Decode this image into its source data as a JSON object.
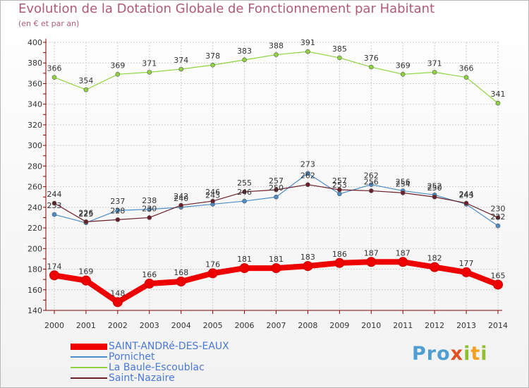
{
  "header": {
    "title": "Evolution de la Dotation Globale de Fonctionnement par Habitant",
    "subtitle": "(en € et par an)"
  },
  "brand": {
    "part1": "Pro",
    "part2": "x",
    "part3": "i",
    "part4": "t",
    "part5": "i"
  },
  "colors": {
    "saint_andre": "#ee0000",
    "pornichet": "#4d8dc6",
    "la_baule": "#8fd43f",
    "saint_nazaire": "#6b1f2a",
    "axis": "#8a0000",
    "grid": "#cccccc",
    "label": "#333333"
  },
  "chart_data": {
    "type": "line",
    "title": "Evolution de la Dotation Globale de Fonctionnement par Habitant",
    "subtitle": "(en € et par an)",
    "xlabel": "",
    "ylabel": "",
    "ylim": [
      140,
      400
    ],
    "yticks": [
      140,
      160,
      180,
      200,
      220,
      240,
      260,
      280,
      300,
      320,
      340,
      360,
      380,
      400
    ],
    "grid": true,
    "legend_position": "bottom-left",
    "x": [
      2000,
      2001,
      2002,
      2003,
      2004,
      2005,
      2006,
      2007,
      2008,
      2009,
      2010,
      2011,
      2012,
      2013,
      2014
    ],
    "series": [
      {
        "name": "SAINT-ANDRé-DES-EAUX",
        "key": "saint_andre",
        "width": 8,
        "values": [
          174,
          169,
          148,
          166,
          168,
          176,
          181,
          181,
          183,
          186,
          187,
          187,
          182,
          177,
          165
        ]
      },
      {
        "name": "Pornichet",
        "key": "pornichet",
        "width": 1.2,
        "values": [
          233,
          225,
          237,
          238,
          240,
          243,
          246,
          250,
          273,
          253,
          262,
          256,
          252,
          243,
          222
        ]
      },
      {
        "name": "La Baule-Escoublac",
        "key": "la_baule",
        "width": 1.2,
        "values": [
          366,
          354,
          369,
          371,
          374,
          378,
          383,
          388,
          391,
          385,
          376,
          369,
          371,
          366,
          341
        ]
      },
      {
        "name": "Saint-Nazaire",
        "key": "saint_nazaire",
        "width": 1.2,
        "values": [
          244,
          226,
          228,
          230,
          242,
          246,
          255,
          257,
          262,
          257,
          256,
          254,
          250,
          244,
          230
        ]
      }
    ]
  }
}
